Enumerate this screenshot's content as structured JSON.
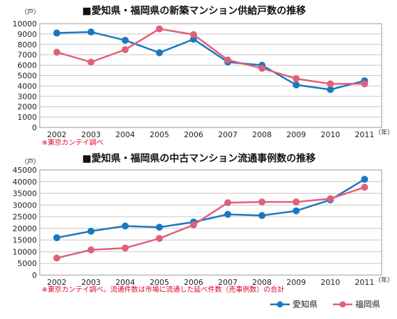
{
  "colors": {
    "aichi": "#1a78c0",
    "fukuoka": "#e0607a",
    "note": "#e0002a"
  },
  "legend": {
    "aichi": "愛知県",
    "fukuoka": "福岡県",
    "placement": "bottom-right"
  },
  "chart_data": [
    {
      "type": "line",
      "title": "■愛知県・福岡県の新築マンション供給戸数の推移",
      "yunit": "（戸）",
      "xunit": "（年）",
      "note": "※東京カンテイ調べ",
      "categories": [
        "2002",
        "2003",
        "2004",
        "2005",
        "2006",
        "2007",
        "2008",
        "2009",
        "2010",
        "2011"
      ],
      "ylim": [
        0,
        10000
      ],
      "yticks": [
        "0",
        "1000",
        "2000",
        "3000",
        "4000",
        "5000",
        "6000",
        "7000",
        "8000",
        "9000",
        "10000"
      ],
      "grid": true,
      "series": [
        {
          "name": "愛知県",
          "values": [
            9100,
            9200,
            8400,
            7200,
            8500,
            6300,
            6000,
            4100,
            3650,
            4500
          ]
        },
        {
          "name": "福岡県",
          "values": [
            7250,
            6300,
            7500,
            9500,
            8950,
            6500,
            5700,
            4700,
            4200,
            4200
          ]
        }
      ]
    },
    {
      "type": "line",
      "title": "■愛知県・福岡県の中古マンション流通事例数の推移",
      "yunit": "（戸）",
      "xunit": "（年）",
      "note": "※東京カンテイ調べ。流通件数は市場に流通した延べ件数（売事例数）の合計",
      "categories": [
        "2002",
        "2003",
        "2004",
        "2005",
        "2006",
        "2007",
        "2008",
        "2009",
        "2010",
        "2011"
      ],
      "ylim": [
        0,
        45000
      ],
      "yticks": [
        "0",
        "5000",
        "10000",
        "15000",
        "20000",
        "25000",
        "30000",
        "35000",
        "40000",
        "45000"
      ],
      "grid": true,
      "series": [
        {
          "name": "愛知県",
          "values": [
            16000,
            18800,
            21000,
            20500,
            22700,
            26000,
            25500,
            27500,
            32200,
            41000
          ]
        },
        {
          "name": "福岡県",
          "values": [
            7300,
            10800,
            11600,
            15700,
            21500,
            31000,
            31300,
            31300,
            32700,
            37600
          ]
        }
      ]
    }
  ]
}
